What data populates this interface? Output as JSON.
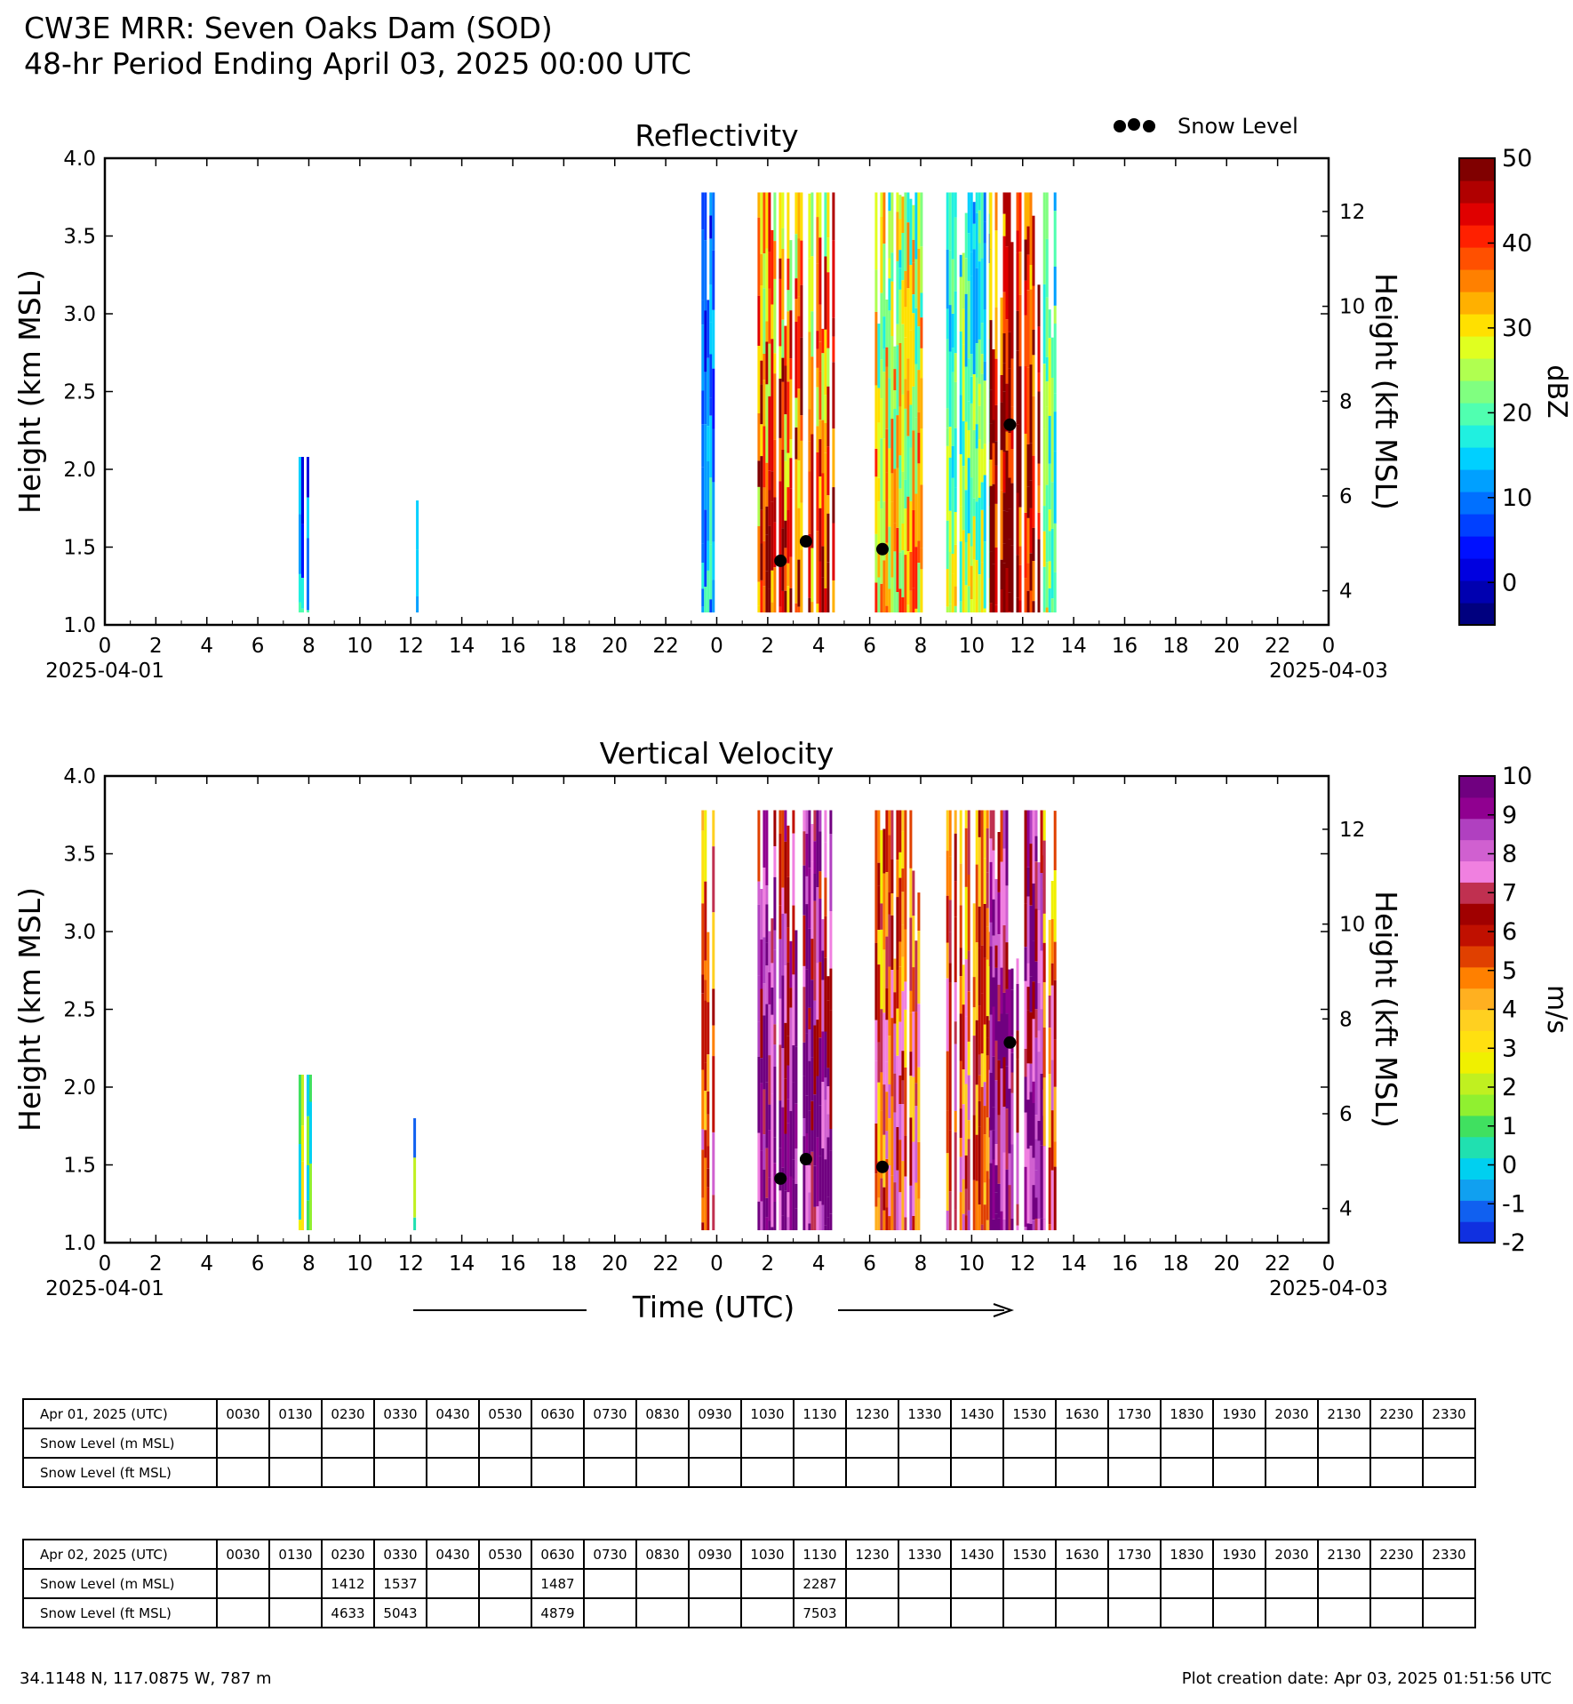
{
  "header": {
    "title": "CW3E MRR: Seven Oaks Dam (SOD)",
    "subtitle": "48-hr Period Ending April 03, 2025 00:00 UTC"
  },
  "legend": {
    "label": "Snow Level",
    "marker_color": "#000000"
  },
  "xaxis_label": "Time (UTC)",
  "chart_data": [
    {
      "type": "heatmap",
      "title": "Reflectivity",
      "ylabel": "Height (km MSL)",
      "ylabel_right": "Height (kft MSL)",
      "ylim": [
        1.0,
        4.0
      ],
      "yticks": [
        "1.0",
        "1.5",
        "2.0",
        "2.5",
        "3.0",
        "3.5",
        "4.0"
      ],
      "yticks_right": [
        "4",
        "6",
        "8",
        "10",
        "12"
      ],
      "xlim_hours": [
        0,
        48
      ],
      "xticks": [
        "0",
        "2",
        "4",
        "6",
        "8",
        "10",
        "12",
        "14",
        "16",
        "18",
        "20",
        "22",
        "0",
        "2",
        "4",
        "6",
        "8",
        "10",
        "12",
        "14",
        "16",
        "18",
        "20",
        "22",
        "0"
      ],
      "xdate_start": "2025-04-01",
      "xdate_end": "2025-04-03",
      "colorbar": {
        "label": "dBZ",
        "range": [
          -5,
          50
        ],
        "ticks": [
          "50",
          "40",
          "30",
          "20",
          "10",
          "0"
        ],
        "colors": [
          "#00007f",
          "#0000b0",
          "#0000e0",
          "#0010ff",
          "#0040ff",
          "#0070ff",
          "#00a0ff",
          "#00d0ff",
          "#20f0e0",
          "#50ffb0",
          "#80ff80",
          "#b0ff50",
          "#e0ff20",
          "#ffe000",
          "#ffb000",
          "#ff8000",
          "#ff5000",
          "#ff2000",
          "#e00000",
          "#b00000",
          "#800000"
        ]
      },
      "echo_segments": [
        {
          "start_hr": 7.6,
          "end_hr": 8.1,
          "top_km": 2.08,
          "intensity": "weak"
        },
        {
          "start_hr": 12.1,
          "end_hr": 12.25,
          "top_km": 1.8,
          "intensity": "weak"
        },
        {
          "start_hr": 23.4,
          "end_hr": 23.9,
          "top_km": 3.78,
          "intensity": "weak"
        },
        {
          "start_hr": 25.6,
          "end_hr": 28.6,
          "top_km": 3.78,
          "intensity": "moderate-strong"
        },
        {
          "start_hr": 30.2,
          "end_hr": 32.0,
          "top_km": 3.78,
          "intensity": "moderate"
        },
        {
          "start_hr": 33.0,
          "end_hr": 34.7,
          "top_km": 3.78,
          "intensity": "weak-moderate"
        },
        {
          "start_hr": 34.7,
          "end_hr": 36.8,
          "top_km": 3.78,
          "intensity": "strong"
        },
        {
          "start_hr": 36.8,
          "end_hr": 37.3,
          "top_km": 3.78,
          "intensity": "weak-moderate"
        }
      ],
      "snow_level_points": [
        {
          "time_hr": 26.5,
          "km": 1.412
        },
        {
          "time_hr": 27.5,
          "km": 1.537
        },
        {
          "time_hr": 30.5,
          "km": 1.487
        },
        {
          "time_hr": 35.5,
          "km": 2.287
        }
      ]
    },
    {
      "type": "heatmap",
      "title": "Vertical Velocity",
      "ylabel": "Height (km MSL)",
      "ylabel_right": "Height (kft MSL)",
      "ylim": [
        1.0,
        4.0
      ],
      "yticks": [
        "1.0",
        "1.5",
        "2.0",
        "2.5",
        "3.0",
        "3.5",
        "4.0"
      ],
      "yticks_right": [
        "4",
        "6",
        "8",
        "10",
        "12"
      ],
      "xlim_hours": [
        0,
        48
      ],
      "xticks": [
        "0",
        "2",
        "4",
        "6",
        "8",
        "10",
        "12",
        "14",
        "16",
        "18",
        "20",
        "22",
        "0",
        "2",
        "4",
        "6",
        "8",
        "10",
        "12",
        "14",
        "16",
        "18",
        "20",
        "22",
        "0"
      ],
      "xdate_start": "2025-04-01",
      "xdate_end": "2025-04-03",
      "colorbar": {
        "label": "m/s",
        "range": [
          -2,
          10
        ],
        "ticks": [
          "10",
          "9",
          "8",
          "7",
          "6",
          "5",
          "4",
          "3",
          "2",
          "1",
          "0",
          "-1",
          "-2"
        ],
        "colors": [
          "#1030e0",
          "#1060f0",
          "#10a0f0",
          "#00d0f0",
          "#20e0b0",
          "#40e060",
          "#90f030",
          "#c0f020",
          "#f0f000",
          "#ffe010",
          "#ffd020",
          "#ffb020",
          "#ff8000",
          "#e04000",
          "#c01000",
          "#a00000",
          "#c03050",
          "#f080e0",
          "#d060d0",
          "#b040c0",
          "#900090",
          "#700080"
        ]
      },
      "echo_segments": [
        {
          "start_hr": 7.6,
          "end_hr": 8.1,
          "top_km": 2.08,
          "intensity": "weak"
        },
        {
          "start_hr": 12.1,
          "end_hr": 12.25,
          "top_km": 1.8,
          "intensity": "weak"
        },
        {
          "start_hr": 23.4,
          "end_hr": 23.9,
          "top_km": 3.78,
          "intensity": "moderate"
        },
        {
          "start_hr": 25.6,
          "end_hr": 28.6,
          "top_km": 3.78,
          "intensity": "strong"
        },
        {
          "start_hr": 30.2,
          "end_hr": 32.0,
          "top_km": 3.78,
          "intensity": "moderate"
        },
        {
          "start_hr": 33.0,
          "end_hr": 34.7,
          "top_km": 3.78,
          "intensity": "moderate"
        },
        {
          "start_hr": 34.7,
          "end_hr": 36.8,
          "top_km": 3.78,
          "intensity": "strong"
        },
        {
          "start_hr": 36.8,
          "end_hr": 37.3,
          "top_km": 3.78,
          "intensity": "moderate"
        }
      ],
      "snow_level_points": [
        {
          "time_hr": 26.5,
          "km": 1.412
        },
        {
          "time_hr": 27.5,
          "km": 1.537
        },
        {
          "time_hr": 30.5,
          "km": 1.487
        },
        {
          "time_hr": 35.5,
          "km": 2.287
        }
      ]
    }
  ],
  "tables": [
    {
      "date_label": "Apr 01, 2025 (UTC)",
      "m_label": "Snow Level (m MSL)",
      "ft_label": "Snow Level (ft MSL)",
      "times": [
        "0030",
        "0130",
        "0230",
        "0330",
        "0430",
        "0530",
        "0630",
        "0730",
        "0830",
        "0930",
        "1030",
        "1130",
        "1230",
        "1330",
        "1430",
        "1530",
        "1630",
        "1730",
        "1830",
        "1930",
        "2030",
        "2130",
        "2230",
        "2330"
      ],
      "m_values": [
        "",
        "",
        "",
        "",
        "",
        "",
        "",
        "",
        "",
        "",
        "",
        "",
        "",
        "",
        "",
        "",
        "",
        "",
        "",
        "",
        "",
        "",
        "",
        ""
      ],
      "ft_values": [
        "",
        "",
        "",
        "",
        "",
        "",
        "",
        "",
        "",
        "",
        "",
        "",
        "",
        "",
        "",
        "",
        "",
        "",
        "",
        "",
        "",
        "",
        "",
        ""
      ]
    },
    {
      "date_label": "Apr 02, 2025 (UTC)",
      "m_label": "Snow Level (m MSL)",
      "ft_label": "Snow Level (ft MSL)",
      "times": [
        "0030",
        "0130",
        "0230",
        "0330",
        "0430",
        "0530",
        "0630",
        "0730",
        "0830",
        "0930",
        "1030",
        "1130",
        "1230",
        "1330",
        "1430",
        "1530",
        "1630",
        "1730",
        "1830",
        "1930",
        "2030",
        "2130",
        "2230",
        "2330"
      ],
      "m_values": [
        "",
        "",
        "1412",
        "1537",
        "",
        "",
        "1487",
        "",
        "",
        "",
        "",
        "2287",
        "",
        "",
        "",
        "",
        "",
        "",
        "",
        "",
        "",
        "",
        "",
        ""
      ],
      "ft_values": [
        "",
        "",
        "4633",
        "5043",
        "",
        "",
        "4879",
        "",
        "",
        "",
        "",
        "7503",
        "",
        "",
        "",
        "",
        "",
        "",
        "",
        "",
        "",
        "",
        "",
        ""
      ]
    }
  ],
  "footer": {
    "location": "34.1148 N, 117.0875 W, 787 m",
    "created": "Plot creation date: Apr 03, 2025 01:51:56 UTC"
  }
}
